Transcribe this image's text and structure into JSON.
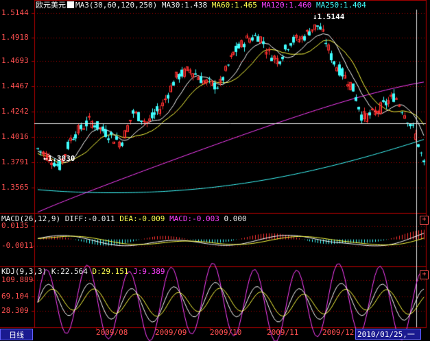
{
  "main_header": {
    "symbol": "欧元美元",
    "ma_params": "MA3(30,60,120,250)",
    "ma30": "MA30:1.438",
    "ma60": "MA60:1.465",
    "ma120": "MA120:1.460",
    "ma250": "MA250:1.404"
  },
  "macd_header": {
    "params": "MACD(26,12,9)",
    "diff": "DIFF:-0.011",
    "dea": "DEA:-0.009",
    "macd": "MACD:-0.003",
    "zero": "0.000"
  },
  "kdj_header": {
    "params": "KDJ(9,3,3)",
    "k": "K:22.564",
    "d": "D:29.151",
    "j": "J:9.389"
  },
  "price_axis": [
    "1.5144",
    "1.4918",
    "1.4693",
    "1.4467",
    "1.4242",
    "1.4016",
    "1.3791",
    "1.3565"
  ],
  "macd_axis": [
    "0.0135",
    "-0.0011"
  ],
  "kdj_axis": [
    "109.889",
    "69.104",
    "28.309"
  ],
  "x_axis": [
    "2009/08",
    "2009/09",
    "2009/10",
    "2009/11",
    "2009/12"
  ],
  "annotations": {
    "high": "1.5144",
    "low": "1.3830"
  },
  "period_tab": "日线",
  "current_date": "2010/01/25,一",
  "scroll_up": "+",
  "scroll_down": "+",
  "colors": {
    "bull": "#ff3030",
    "bear": "#40ffff",
    "ma30": "#ffffff",
    "ma60": "#ffff40",
    "ma120": "#ff40ff",
    "ma250": "#40ffff",
    "grid": "#b00000"
  },
  "chart_data": {
    "type": "candlestick",
    "price_range": [
      1.344,
      1.523
    ],
    "markers": {
      "high": 1.5144,
      "low": 1.383
    },
    "macd_range": [
      -0.03,
      0.02
    ],
    "kdj_range": [
      -5,
      120
    ]
  }
}
